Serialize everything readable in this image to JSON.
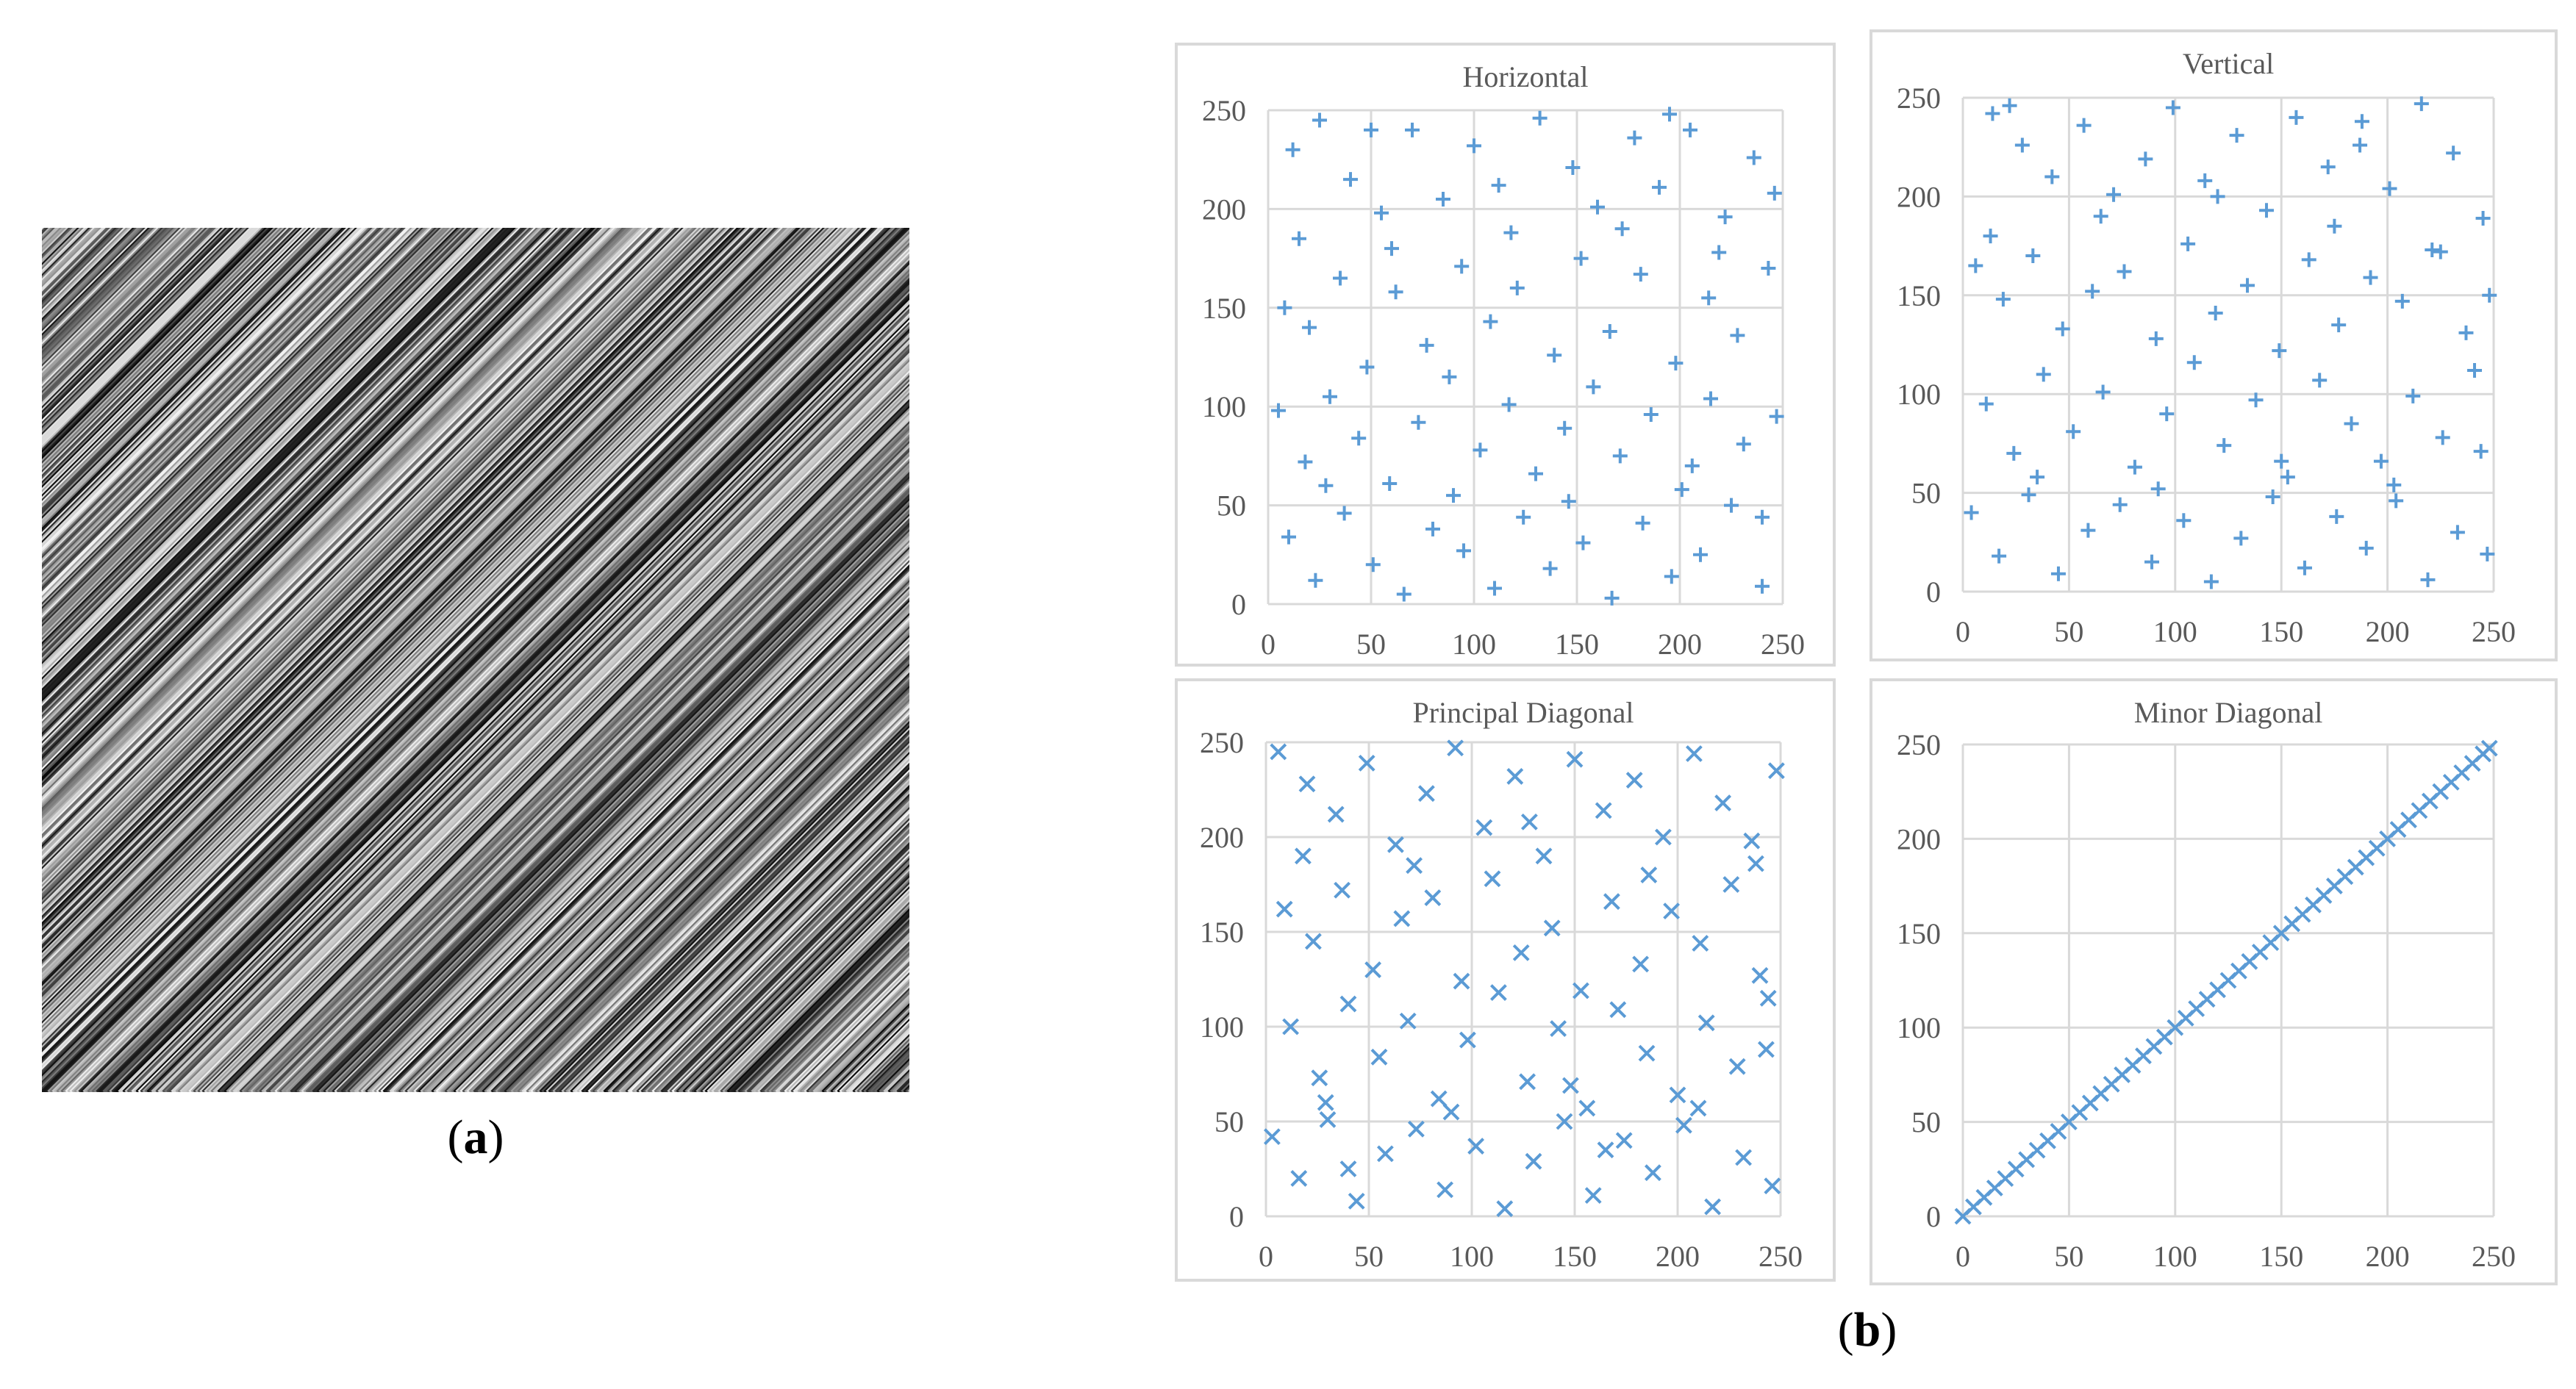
{
  "figure": {
    "caption_a": "a",
    "caption_b": "b",
    "marker_color": "#5b9bd5",
    "texture_colors": {
      "dark": "#0d0d0d",
      "light": "#f2f2f2"
    }
  },
  "chart_data": [
    {
      "type": "scatter",
      "title": "Horizontal",
      "marker": "plus",
      "xlim": [
        0,
        250
      ],
      "ylim": [
        0,
        250
      ],
      "xticks": [
        "0",
        "50",
        "100",
        "150",
        "200",
        "250"
      ],
      "yticks": [
        "0",
        "50",
        "100",
        "150",
        "200",
        "250"
      ],
      "grid": true,
      "distribution": "uniform-random",
      "points": [
        [
          12,
          230
        ],
        [
          25,
          245
        ],
        [
          40,
          215
        ],
        [
          55,
          198
        ],
        [
          70,
          240
        ],
        [
          85,
          205
        ],
        [
          100,
          232
        ],
        [
          118,
          188
        ],
        [
          132,
          246
        ],
        [
          148,
          221
        ],
        [
          160,
          201
        ],
        [
          178,
          236
        ],
        [
          190,
          211
        ],
        [
          205,
          240
        ],
        [
          222,
          196
        ],
        [
          236,
          226
        ],
        [
          246,
          208
        ],
        [
          8,
          150
        ],
        [
          20,
          140
        ],
        [
          35,
          165
        ],
        [
          48,
          120
        ],
        [
          62,
          158
        ],
        [
          77,
          131
        ],
        [
          94,
          171
        ],
        [
          108,
          143
        ],
        [
          121,
          160
        ],
        [
          139,
          126
        ],
        [
          152,
          175
        ],
        [
          166,
          138
        ],
        [
          181,
          167
        ],
        [
          198,
          122
        ],
        [
          214,
          155
        ],
        [
          228,
          136
        ],
        [
          243,
          170
        ],
        [
          5,
          98
        ],
        [
          18,
          72
        ],
        [
          30,
          105
        ],
        [
          44,
          84
        ],
        [
          59,
          61
        ],
        [
          73,
          92
        ],
        [
          88,
          115
        ],
        [
          103,
          78
        ],
        [
          117,
          101
        ],
        [
          130,
          66
        ],
        [
          144,
          89
        ],
        [
          158,
          110
        ],
        [
          171,
          75
        ],
        [
          186,
          96
        ],
        [
          201,
          58
        ],
        [
          215,
          104
        ],
        [
          231,
          81
        ],
        [
          247,
          95
        ],
        [
          10,
          34
        ],
        [
          23,
          12
        ],
        [
          37,
          46
        ],
        [
          51,
          20
        ],
        [
          66,
          5
        ],
        [
          80,
          38
        ],
        [
          95,
          27
        ],
        [
          110,
          8
        ],
        [
          124,
          44
        ],
        [
          137,
          18
        ],
        [
          153,
          31
        ],
        [
          167,
          3
        ],
        [
          182,
          41
        ],
        [
          196,
          14
        ],
        [
          210,
          25
        ],
        [
          225,
          50
        ],
        [
          240,
          9
        ],
        [
          15,
          185
        ],
        [
          60,
          180
        ],
        [
          112,
          212
        ],
        [
          172,
          190
        ],
        [
          219,
          178
        ],
        [
          28,
          60
        ],
        [
          90,
          55
        ],
        [
          146,
          52
        ],
        [
          206,
          70
        ],
        [
          240,
          44
        ],
        [
          50,
          240
        ],
        [
          195,
          248
        ]
      ]
    },
    {
      "type": "scatter",
      "title": "Vertical",
      "marker": "plus",
      "xlim": [
        0,
        250
      ],
      "ylim": [
        0,
        250
      ],
      "xticks": [
        "0",
        "50",
        "100",
        "150",
        "200",
        "250"
      ],
      "yticks": [
        "0",
        "50",
        "100",
        "150",
        "200",
        "250"
      ],
      "grid": true,
      "distribution": "uniform-random",
      "points": [
        [
          14,
          242
        ],
        [
          28,
          226
        ],
        [
          42,
          210
        ],
        [
          57,
          236
        ],
        [
          71,
          201
        ],
        [
          86,
          219
        ],
        [
          99,
          245
        ],
        [
          114,
          208
        ],
        [
          129,
          231
        ],
        [
          143,
          193
        ],
        [
          157,
          240
        ],
        [
          172,
          215
        ],
        [
          187,
          226
        ],
        [
          201,
          204
        ],
        [
          216,
          247
        ],
        [
          231,
          222
        ],
        [
          245,
          189
        ],
        [
          6,
          165
        ],
        [
          19,
          148
        ],
        [
          33,
          170
        ],
        [
          47,
          133
        ],
        [
          61,
          152
        ],
        [
          76,
          162
        ],
        [
          91,
          128
        ],
        [
          106,
          176
        ],
        [
          119,
          141
        ],
        [
          134,
          155
        ],
        [
          149,
          122
        ],
        [
          163,
          168
        ],
        [
          177,
          135
        ],
        [
          192,
          159
        ],
        [
          207,
          147
        ],
        [
          221,
          173
        ],
        [
          237,
          131
        ],
        [
          248,
          150
        ],
        [
          11,
          95
        ],
        [
          24,
          70
        ],
        [
          38,
          110
        ],
        [
          52,
          81
        ],
        [
          66,
          101
        ],
        [
          81,
          63
        ],
        [
          96,
          90
        ],
        [
          109,
          116
        ],
        [
          123,
          74
        ],
        [
          138,
          97
        ],
        [
          153,
          58
        ],
        [
          168,
          107
        ],
        [
          183,
          85
        ],
        [
          197,
          66
        ],
        [
          212,
          99
        ],
        [
          226,
          78
        ],
        [
          241,
          112
        ],
        [
          4,
          40
        ],
        [
          17,
          18
        ],
        [
          31,
          49
        ],
        [
          45,
          9
        ],
        [
          59,
          31
        ],
        [
          74,
          44
        ],
        [
          89,
          15
        ],
        [
          104,
          36
        ],
        [
          117,
          5
        ],
        [
          131,
          27
        ],
        [
          146,
          48
        ],
        [
          161,
          12
        ],
        [
          176,
          38
        ],
        [
          190,
          22
        ],
        [
          204,
          46
        ],
        [
          219,
          6
        ],
        [
          233,
          30
        ],
        [
          247,
          19
        ],
        [
          13,
          180
        ],
        [
          65,
          190
        ],
        [
          120,
          200
        ],
        [
          175,
          185
        ],
        [
          225,
          172
        ],
        [
          35,
          58
        ],
        [
          92,
          52
        ],
        [
          150,
          66
        ],
        [
          203,
          54
        ],
        [
          244,
          71
        ],
        [
          22,
          246
        ],
        [
          188,
          238
        ]
      ]
    },
    {
      "type": "scatter",
      "title": "Principal Diagonal",
      "marker": "cross",
      "xlim": [
        0,
        250
      ],
      "ylim": [
        0,
        250
      ],
      "xticks": [
        "0",
        "50",
        "100",
        "150",
        "200",
        "250"
      ],
      "yticks": [
        "0",
        "50",
        "100",
        "150",
        "200",
        "250"
      ],
      "grid": true,
      "distribution": "uniform-random",
      "points": [
        [
          6,
          245
        ],
        [
          20,
          228
        ],
        [
          34,
          212
        ],
        [
          49,
          239
        ],
        [
          63,
          196
        ],
        [
          78,
          223
        ],
        [
          92,
          247
        ],
        [
          106,
          205
        ],
        [
          121,
          232
        ],
        [
          135,
          190
        ],
        [
          150,
          241
        ],
        [
          164,
          214
        ],
        [
          179,
          230
        ],
        [
          193,
          200
        ],
        [
          208,
          244
        ],
        [
          222,
          218
        ],
        [
          238,
          186
        ],
        [
          248,
          235
        ],
        [
          9,
          162
        ],
        [
          23,
          145
        ],
        [
          37,
          172
        ],
        [
          52,
          130
        ],
        [
          66,
          157
        ],
        [
          81,
          168
        ],
        [
          95,
          124
        ],
        [
          110,
          178
        ],
        [
          124,
          139
        ],
        [
          139,
          152
        ],
        [
          153,
          119
        ],
        [
          168,
          166
        ],
        [
          182,
          133
        ],
        [
          197,
          161
        ],
        [
          211,
          144
        ],
        [
          226,
          175
        ],
        [
          240,
          127
        ],
        [
          12,
          100
        ],
        [
          26,
          73
        ],
        [
          40,
          112
        ],
        [
          55,
          84
        ],
        [
          69,
          103
        ],
        [
          84,
          62
        ],
        [
          98,
          93
        ],
        [
          113,
          118
        ],
        [
          127,
          71
        ],
        [
          142,
          99
        ],
        [
          156,
          57
        ],
        [
          171,
          109
        ],
        [
          185,
          86
        ],
        [
          200,
          64
        ],
        [
          214,
          102
        ],
        [
          229,
          79
        ],
        [
          244,
          115
        ],
        [
          3,
          42
        ],
        [
          16,
          20
        ],
        [
          30,
          51
        ],
        [
          44,
          8
        ],
        [
          58,
          33
        ],
        [
          73,
          46
        ],
        [
          87,
          14
        ],
        [
          102,
          37
        ],
        [
          116,
          4
        ],
        [
          130,
          29
        ],
        [
          145,
          50
        ],
        [
          159,
          11
        ],
        [
          174,
          40
        ],
        [
          188,
          23
        ],
        [
          203,
          48
        ],
        [
          217,
          5
        ],
        [
          232,
          31
        ],
        [
          246,
          16
        ],
        [
          18,
          190
        ],
        [
          72,
          185
        ],
        [
          128,
          208
        ],
        [
          186,
          180
        ],
        [
          236,
          198
        ],
        [
          29,
          60
        ],
        [
          90,
          55
        ],
        [
          148,
          69
        ],
        [
          210,
          57
        ],
        [
          243,
          88
        ],
        [
          40,
          25
        ],
        [
          165,
          35
        ]
      ]
    },
    {
      "type": "scatter",
      "title": "Minor Diagonal",
      "marker": "cross",
      "xlim": [
        0,
        250
      ],
      "ylim": [
        0,
        250
      ],
      "xticks": [
        "0",
        "50",
        "100",
        "150",
        "200",
        "250"
      ],
      "yticks": [
        "0",
        "50",
        "100",
        "150",
        "200",
        "250"
      ],
      "grid": true,
      "distribution": "linear",
      "points": [
        [
          0,
          0
        ],
        [
          5,
          5
        ],
        [
          10,
          10
        ],
        [
          15,
          15
        ],
        [
          20,
          20
        ],
        [
          25,
          25
        ],
        [
          30,
          30
        ],
        [
          35,
          35
        ],
        [
          40,
          40
        ],
        [
          45,
          45
        ],
        [
          50,
          50
        ],
        [
          55,
          55
        ],
        [
          60,
          60
        ],
        [
          65,
          65
        ],
        [
          70,
          70
        ],
        [
          75,
          75
        ],
        [
          80,
          80
        ],
        [
          85,
          85
        ],
        [
          90,
          90
        ],
        [
          95,
          95
        ],
        [
          100,
          100
        ],
        [
          105,
          105
        ],
        [
          110,
          110
        ],
        [
          115,
          115
        ],
        [
          120,
          120
        ],
        [
          125,
          125
        ],
        [
          130,
          130
        ],
        [
          135,
          135
        ],
        [
          140,
          140
        ],
        [
          145,
          145
        ],
        [
          150,
          150
        ],
        [
          155,
          155
        ],
        [
          160,
          160
        ],
        [
          165,
          165
        ],
        [
          170,
          170
        ],
        [
          175,
          175
        ],
        [
          180,
          180
        ],
        [
          185,
          185
        ],
        [
          190,
          190
        ],
        [
          195,
          195
        ],
        [
          200,
          200
        ],
        [
          205,
          205
        ],
        [
          210,
          210
        ],
        [
          215,
          215
        ],
        [
          220,
          220
        ],
        [
          225,
          225
        ],
        [
          230,
          230
        ],
        [
          235,
          235
        ],
        [
          240,
          240
        ],
        [
          245,
          245
        ],
        [
          248,
          248
        ]
      ]
    }
  ]
}
